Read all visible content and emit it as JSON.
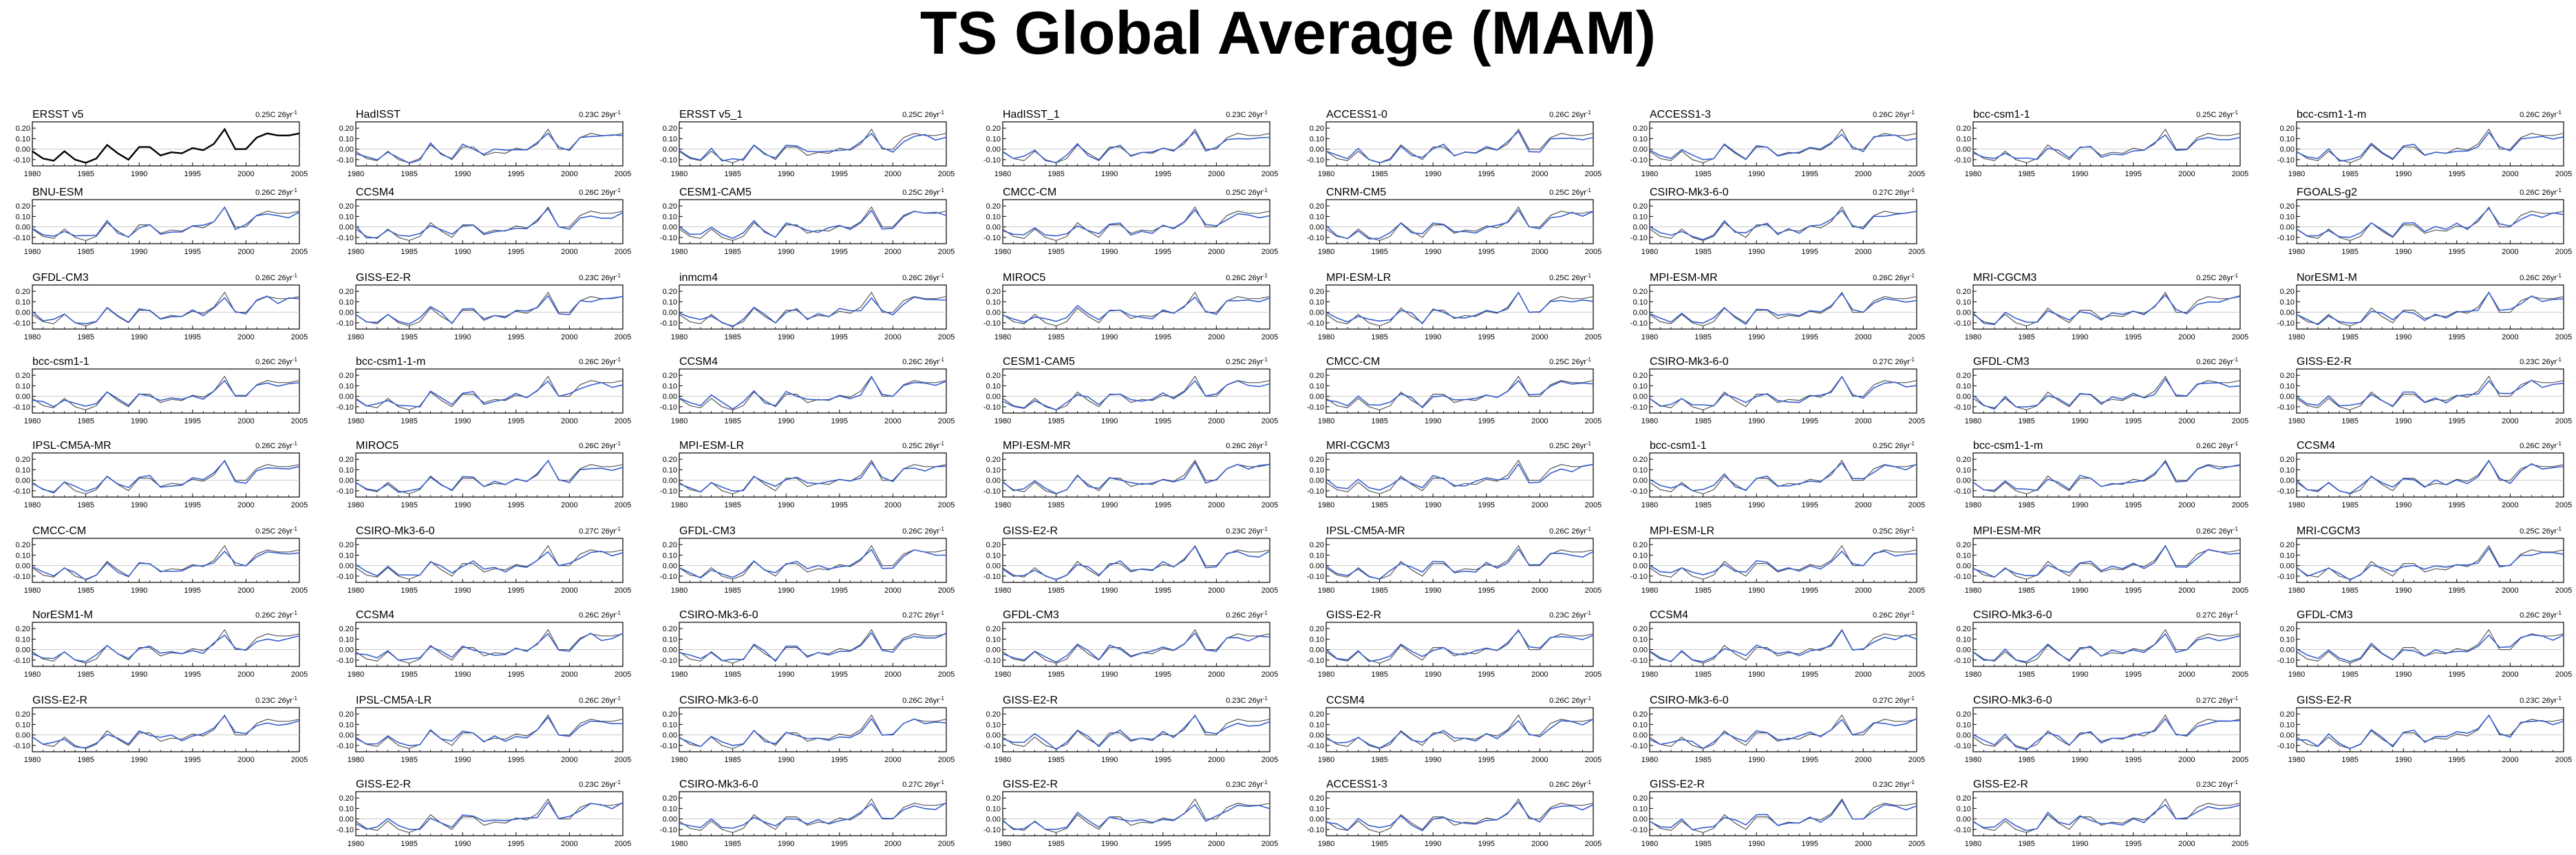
{
  "title": "TS Global Average (MAM)",
  "colors": {
    "observed": "#000000",
    "model": "#3a5fcd",
    "reference": "#555555",
    "frame": "#000000"
  },
  "chart_data": {
    "type": "line",
    "layout": "panel grid, 9 rows x 8 columns",
    "ylim": [
      -0.16,
      0.26
    ],
    "xlim": [
      1980,
      2005
    ],
    "yticks": [
      "0.20",
      "0.10",
      "0.00",
      "-0.10"
    ],
    "xticks": [
      "1980",
      "1985",
      "1990",
      "1995",
      "2000",
      "2005"
    ],
    "trend_unit_label": "26yr",
    "observed_series": {
      "name": "ERSST v5",
      "x": [
        1980,
        1981,
        1982,
        1983,
        1984,
        1985,
        1986,
        1987,
        1988,
        1989,
        1990,
        1991,
        1992,
        1993,
        1994,
        1995,
        1996,
        1997,
        1998,
        1999,
        2000,
        2001,
        2002,
        2003,
        2004,
        2005
      ],
      "values": [
        -0.02,
        -0.09,
        -0.11,
        -0.02,
        -0.1,
        -0.13,
        -0.09,
        0.04,
        -0.04,
        -0.1,
        0.02,
        0.02,
        -0.06,
        -0.03,
        -0.04,
        0.01,
        -0.01,
        0.05,
        0.19,
        0.0,
        0.0,
        0.11,
        0.15,
        0.13,
        0.13,
        0.15
      ]
    },
    "panels": [
      {
        "row": 0,
        "col": 0,
        "label": "ERSST v5",
        "trend": "0.25C"
      },
      {
        "row": 0,
        "col": 1,
        "label": "HadISST",
        "trend": "0.23C"
      },
      {
        "row": 0,
        "col": 2,
        "label": "ERSST v5_1",
        "trend": "0.25C"
      },
      {
        "row": 0,
        "col": 3,
        "label": "HadISST_1",
        "trend": "0.23C"
      },
      {
        "row": 0,
        "col": 4,
        "label": "ACCESS1-0",
        "trend": "0.26C"
      },
      {
        "row": 0,
        "col": 5,
        "label": "ACCESS1-3",
        "trend": "0.26C"
      },
      {
        "row": 0,
        "col": 6,
        "label": "bcc-csm1-1",
        "trend": "0.25C"
      },
      {
        "row": 0,
        "col": 7,
        "label": "bcc-csm1-1-m",
        "trend": "0.26C"
      },
      {
        "row": 1,
        "col": 0,
        "label": "BNU-ESM",
        "trend": "0.26C"
      },
      {
        "row": 1,
        "col": 1,
        "label": "CCSM4",
        "trend": "0.26C"
      },
      {
        "row": 1,
        "col": 2,
        "label": "CESM1-CAM5",
        "trend": "0.25C"
      },
      {
        "row": 1,
        "col": 3,
        "label": "CMCC-CM",
        "trend": "0.25C"
      },
      {
        "row": 1,
        "col": 4,
        "label": "CNRM-CM5",
        "trend": "0.25C"
      },
      {
        "row": 1,
        "col": 5,
        "label": "CSIRO-Mk3-6-0",
        "trend": "0.27C"
      },
      {
        "row": 1,
        "col": 7,
        "label": "FGOALS-g2",
        "trend": "0.26C"
      },
      {
        "row": 2,
        "col": 0,
        "label": "GFDL-CM3",
        "trend": "0.26C"
      },
      {
        "row": 2,
        "col": 1,
        "label": "GISS-E2-R",
        "trend": "0.23C"
      },
      {
        "row": 2,
        "col": 2,
        "label": "inmcm4",
        "trend": "0.26C"
      },
      {
        "row": 2,
        "col": 3,
        "label": "MIROC5",
        "trend": "0.26C"
      },
      {
        "row": 2,
        "col": 4,
        "label": "MPI-ESM-LR",
        "trend": "0.25C"
      },
      {
        "row": 2,
        "col": 5,
        "label": "MPI-ESM-MR",
        "trend": "0.26C"
      },
      {
        "row": 2,
        "col": 6,
        "label": "MRI-CGCM3",
        "trend": "0.25C"
      },
      {
        "row": 2,
        "col": 7,
        "label": "NorESM1-M",
        "trend": "0.26C"
      },
      {
        "row": 3,
        "col": 0,
        "label": "bcc-csm1-1",
        "trend": "0.26C"
      },
      {
        "row": 3,
        "col": 1,
        "label": "bcc-csm1-1-m",
        "trend": "0.26C"
      },
      {
        "row": 3,
        "col": 2,
        "label": "CCSM4",
        "trend": "0.26C"
      },
      {
        "row": 3,
        "col": 3,
        "label": "CESM1-CAM5",
        "trend": "0.25C"
      },
      {
        "row": 3,
        "col": 4,
        "label": "CMCC-CM",
        "trend": "0.25C"
      },
      {
        "row": 3,
        "col": 5,
        "label": "CSIRO-Mk3-6-0",
        "trend": "0.27C"
      },
      {
        "row": 3,
        "col": 6,
        "label": "GFDL-CM3",
        "trend": "0.26C"
      },
      {
        "row": 3,
        "col": 7,
        "label": "GISS-E2-R",
        "trend": "0.23C"
      },
      {
        "row": 4,
        "col": 0,
        "label": "IPSL-CM5A-MR",
        "trend": "0.26C"
      },
      {
        "row": 4,
        "col": 1,
        "label": "MIROC5",
        "trend": "0.26C"
      },
      {
        "row": 4,
        "col": 2,
        "label": "MPI-ESM-LR",
        "trend": "0.25C"
      },
      {
        "row": 4,
        "col": 3,
        "label": "MPI-ESM-MR",
        "trend": "0.26C"
      },
      {
        "row": 4,
        "col": 4,
        "label": "MRI-CGCM3",
        "trend": "0.25C"
      },
      {
        "row": 4,
        "col": 5,
        "label": "bcc-csm1-1",
        "trend": "0.25C"
      },
      {
        "row": 4,
        "col": 6,
        "label": "bcc-csm1-1-m",
        "trend": "0.26C"
      },
      {
        "row": 4,
        "col": 7,
        "label": "CCSM4",
        "trend": "0.26C"
      },
      {
        "row": 5,
        "col": 0,
        "label": "CMCC-CM",
        "trend": "0.25C"
      },
      {
        "row": 5,
        "col": 1,
        "label": "CSIRO-Mk3-6-0",
        "trend": "0.27C"
      },
      {
        "row": 5,
        "col": 2,
        "label": "GFDL-CM3",
        "trend": "0.26C"
      },
      {
        "row": 5,
        "col": 3,
        "label": "GISS-E2-R",
        "trend": "0.23C"
      },
      {
        "row": 5,
        "col": 4,
        "label": "IPSL-CM5A-MR",
        "trend": "0.26C"
      },
      {
        "row": 5,
        "col": 5,
        "label": "MPI-ESM-LR",
        "trend": "0.25C"
      },
      {
        "row": 5,
        "col": 6,
        "label": "MPI-ESM-MR",
        "trend": "0.26C"
      },
      {
        "row": 5,
        "col": 7,
        "label": "MRI-CGCM3",
        "trend": "0.25C"
      },
      {
        "row": 6,
        "col": 0,
        "label": "NorESM1-M",
        "trend": "0.26C"
      },
      {
        "row": 6,
        "col": 1,
        "label": "CCSM4",
        "trend": "0.26C"
      },
      {
        "row": 6,
        "col": 2,
        "label": "CSIRO-Mk3-6-0",
        "trend": "0.27C"
      },
      {
        "row": 6,
        "col": 3,
        "label": "GFDL-CM3",
        "trend": "0.26C"
      },
      {
        "row": 6,
        "col": 4,
        "label": "GISS-E2-R",
        "trend": "0.23C"
      },
      {
        "row": 6,
        "col": 5,
        "label": "CCSM4",
        "trend": "0.26C"
      },
      {
        "row": 6,
        "col": 6,
        "label": "CSIRO-Mk3-6-0",
        "trend": "0.27C"
      },
      {
        "row": 6,
        "col": 7,
        "label": "GFDL-CM3",
        "trend": "0.26C"
      },
      {
        "row": 7,
        "col": 0,
        "label": "GISS-E2-R",
        "trend": "0.23C"
      },
      {
        "row": 7,
        "col": 1,
        "label": "IPSL-CM5A-LR",
        "trend": "0.26C"
      },
      {
        "row": 7,
        "col": 2,
        "label": "CSIRO-Mk3-6-0",
        "trend": "0.26C"
      },
      {
        "row": 7,
        "col": 3,
        "label": "GISS-E2-R",
        "trend": "0.23C"
      },
      {
        "row": 7,
        "col": 4,
        "label": "CCSM4",
        "trend": "0.26C"
      },
      {
        "row": 7,
        "col": 5,
        "label": "CSIRO-Mk3-6-0",
        "trend": "0.27C"
      },
      {
        "row": 7,
        "col": 6,
        "label": "CSIRO-Mk3-6-0",
        "trend": "0.27C"
      },
      {
        "row": 7,
        "col": 7,
        "label": "GISS-E2-R",
        "trend": "0.23C"
      },
      {
        "row": 8,
        "col": 1,
        "label": "GISS-E2-R",
        "trend": "0.23C"
      },
      {
        "row": 8,
        "col": 2,
        "label": "CSIRO-Mk3-6-0",
        "trend": "0.27C"
      },
      {
        "row": 8,
        "col": 3,
        "label": "GISS-E2-R",
        "trend": "0.23C"
      },
      {
        "row": 8,
        "col": 4,
        "label": "ACCESS1-3",
        "trend": "0.26C"
      },
      {
        "row": 8,
        "col": 5,
        "label": "GISS-E2-R",
        "trend": "0.23C"
      },
      {
        "row": 8,
        "col": 6,
        "label": "GISS-E2-R",
        "trend": "0.23C"
      }
    ]
  }
}
